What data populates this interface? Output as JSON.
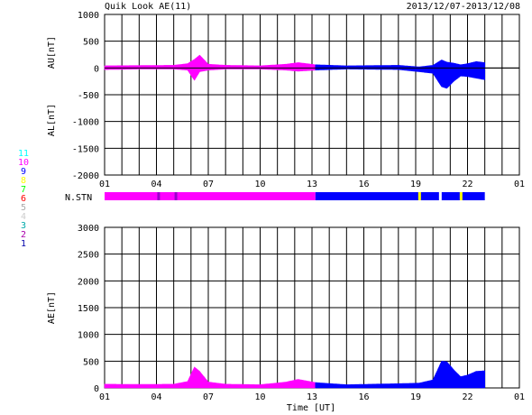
{
  "header": {
    "title": "Quik Look AE(11)",
    "date_range": "2013/12/07-2013/12/08"
  },
  "colors": {
    "magenta": "#ff00ff",
    "blue": "#0000ff",
    "yellow": "#ffff00",
    "grid": "#000000"
  },
  "chart_data": [
    {
      "type": "area",
      "id": "au_al",
      "ylabel_upper": "AU[nT]",
      "ylabel_lower": "AL[nT]",
      "ylim": [
        -2000,
        1000
      ],
      "yticks": [
        1000,
        500,
        0,
        -500,
        -1000,
        -1500,
        -2000
      ],
      "xlim_hours": [
        1,
        25
      ],
      "xtick_labels": [
        "01",
        "04",
        "07",
        "10",
        "13",
        "16",
        "19",
        "22",
        "01"
      ],
      "grid": true,
      "series": [
        {
          "key": "AU",
          "x": [
            1,
            3,
            5,
            5.8,
            6.2,
            6.5,
            7,
            8,
            10,
            11.5,
            12.2,
            13.2,
            15,
            18,
            19.2,
            20,
            20.5,
            20.8,
            21.2,
            21.6,
            22,
            22.5,
            23
          ],
          "y": [
            40,
            45,
            50,
            80,
            160,
            240,
            70,
            50,
            40,
            70,
            100,
            60,
            40,
            50,
            20,
            50,
            150,
            110,
            90,
            60,
            80,
            120,
            100
          ]
        },
        {
          "key": "AL",
          "x": [
            1,
            3,
            5,
            5.8,
            6.2,
            6.5,
            7,
            8,
            10,
            11.5,
            12.2,
            13.2,
            15,
            18,
            19.2,
            20,
            20.5,
            20.8,
            21.2,
            21.6,
            22,
            22.5,
            23
          ],
          "y": [
            -30,
            -20,
            -20,
            -40,
            -230,
            -70,
            -40,
            -20,
            -20,
            -40,
            -60,
            -40,
            -20,
            -30,
            -70,
            -100,
            -350,
            -380,
            -250,
            -150,
            -160,
            -190,
            -220
          ]
        }
      ],
      "segments": [
        {
          "from": 1,
          "to": 13.2,
          "color": "magenta"
        },
        {
          "from": 13.2,
          "to": 23,
          "color": "blue"
        }
      ]
    },
    {
      "type": "area",
      "id": "ae",
      "ylabel": "AE[nT]",
      "ylim": [
        0,
        3000
      ],
      "yticks": [
        3000,
        2500,
        2000,
        1500,
        1000,
        500,
        0
      ],
      "xlim_hours": [
        1,
        25
      ],
      "xtick_labels": [
        "01",
        "04",
        "07",
        "10",
        "13",
        "16",
        "19",
        "22",
        "01"
      ],
      "xlabel": "Time [UT]",
      "grid": true,
      "x": [
        1,
        3,
        5,
        5.8,
        6.2,
        6.5,
        7,
        8,
        10,
        11.5,
        12.2,
        13.2,
        15,
        18,
        19.2,
        20,
        20.5,
        20.8,
        21.2,
        21.6,
        22,
        22.5,
        23
      ],
      "values": [
        70,
        65,
        70,
        120,
        390,
        310,
        110,
        70,
        60,
        110,
        160,
        100,
        60,
        80,
        90,
        150,
        500,
        490,
        340,
        210,
        240,
        310,
        320
      ],
      "segments": [
        {
          "from": 1,
          "to": 13.2,
          "color": "magenta"
        },
        {
          "from": 13.2,
          "to": 23,
          "color": "blue"
        }
      ]
    }
  ],
  "station_bar": {
    "label": "N.STN",
    "segments": [
      {
        "from": 1,
        "to": 13.2,
        "color": "magenta"
      },
      {
        "from": 13.2,
        "to": 23,
        "color": "blue"
      }
    ],
    "marks": [
      {
        "at": 4.1,
        "color": "#9900cc"
      },
      {
        "at": 5.1,
        "color": "#9900cc"
      },
      {
        "at": 19.2,
        "color": "yellow"
      },
      {
        "at": 20.4,
        "color": "blue-light"
      },
      {
        "at": 21.6,
        "color": "yellow"
      }
    ]
  },
  "legend_counts": [
    {
      "label": "11",
      "color": "#00ffff"
    },
    {
      "label": "10",
      "color": "#ff00ff"
    },
    {
      "label": "9",
      "color": "#0000ff"
    },
    {
      "label": "8",
      "color": "#ffff00"
    },
    {
      "label": "7",
      "color": "#00ff00"
    },
    {
      "label": "6",
      "color": "#ff0000"
    },
    {
      "label": "5",
      "color": "#aaaaaa"
    },
    {
      "label": "4",
      "color": "#cccccc"
    },
    {
      "label": "3",
      "color": "#00aaaa"
    },
    {
      "label": "2",
      "color": "#aa00aa"
    },
    {
      "label": "1",
      "color": "#0000aa"
    }
  ]
}
